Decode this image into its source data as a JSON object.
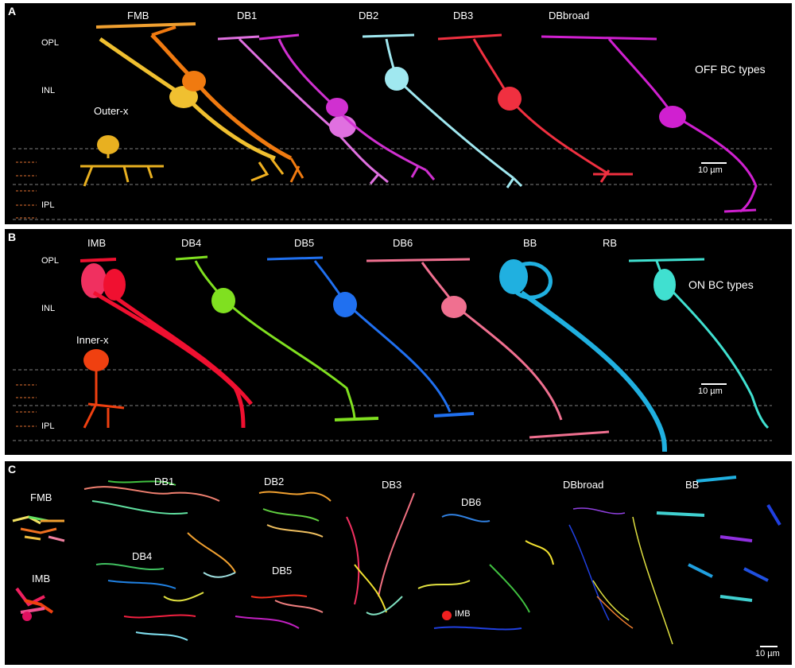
{
  "panel_a": {
    "label": "A",
    "cell_types": [
      "FMB",
      "DB1",
      "DB2",
      "DB3",
      "DBbroad"
    ],
    "extra_label": "Outer-x",
    "layers": [
      "OPL",
      "INL",
      "IPL"
    ],
    "title": "OFF BC types",
    "scale": "10 µm",
    "colors": {
      "FMB": "#f0a030",
      "DB1": "#e040e0",
      "DB2": "#a0e8f0",
      "DB3": "#f03040",
      "DBbroad": "#d020d0",
      "Outer-x": "#e8b020"
    }
  },
  "panel_b": {
    "label": "B",
    "cell_types": [
      "IMB",
      "DB4",
      "DB5",
      "DB6",
      "BB",
      "RB"
    ],
    "extra_label": "Inner-x",
    "layers": [
      "OPL",
      "INL",
      "IPL"
    ],
    "title": "ON BC types",
    "scale": "10 µm",
    "colors": {
      "IMB": "#f01030",
      "DB4": "#80e020",
      "DB5": "#2070f0",
      "DB6": "#f07090",
      "BB": "#20b0e0",
      "RB": "#40e0d0",
      "Inner-x": "#f04010"
    }
  },
  "panel_c": {
    "label": "C",
    "cell_types": [
      "FMB",
      "DB1",
      "DB2",
      "DB3",
      "DB6",
      "DBbroad",
      "BB",
      "IMB",
      "DB4",
      "DB5"
    ],
    "inner_label": "IMB",
    "scale": "10 µm"
  }
}
